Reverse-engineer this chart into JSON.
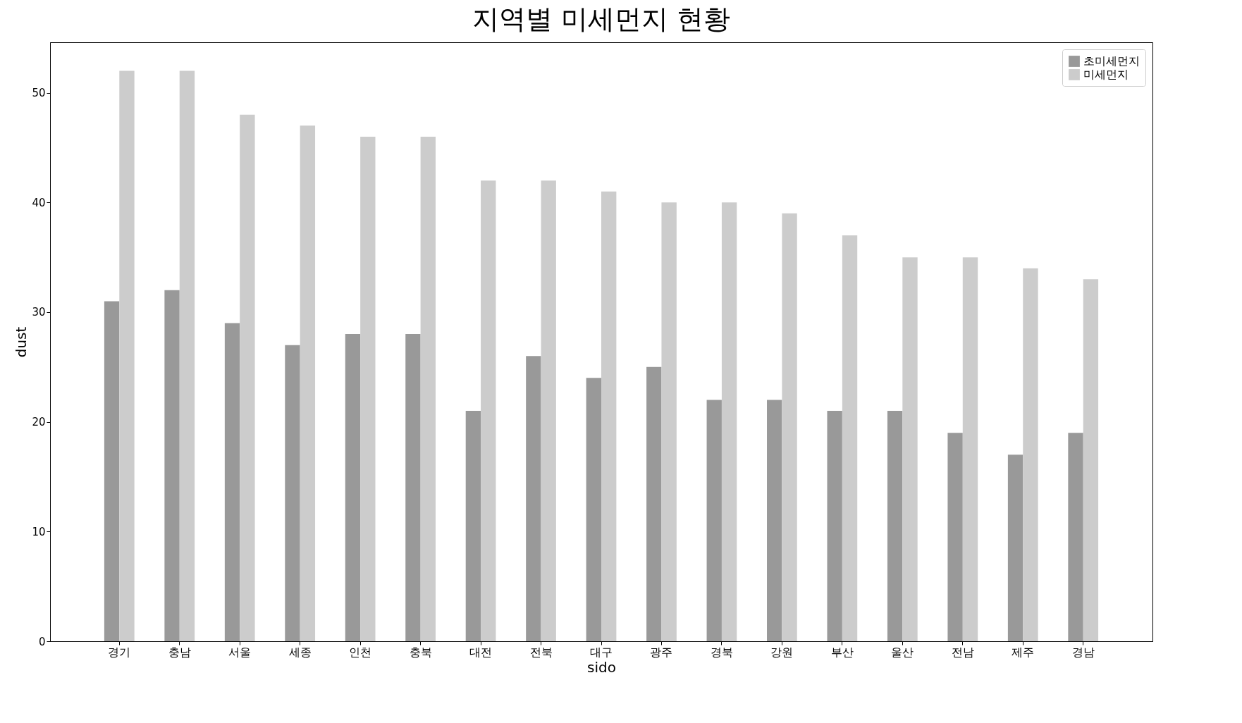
{
  "chart_data": {
    "type": "bar",
    "title": "지역별 미세먼지 현황",
    "xlabel": "sido",
    "ylabel": "dust",
    "categories": [
      "경기",
      "충남",
      "서울",
      "세종",
      "인천",
      "충북",
      "대전",
      "전북",
      "대구",
      "광주",
      "경북",
      "강원",
      "부산",
      "울산",
      "전남",
      "제주",
      "경남"
    ],
    "series": [
      {
        "name": "초미세먼지",
        "color": "#999999",
        "values": [
          31,
          32,
          29,
          27,
          28,
          28,
          21,
          26,
          24,
          25,
          22,
          22,
          21,
          21,
          19,
          17,
          19
        ]
      },
      {
        "name": "미세먼지",
        "color": "#cccccc",
        "values": [
          52,
          52,
          48,
          47,
          46,
          46,
          42,
          42,
          41,
          40,
          40,
          39,
          37,
          35,
          35,
          34,
          33
        ]
      }
    ],
    "ylim": [
      0,
      54.6
    ],
    "yticks": [
      0,
      10,
      20,
      30,
      40,
      50
    ],
    "legend": "top right",
    "grid": false
  }
}
